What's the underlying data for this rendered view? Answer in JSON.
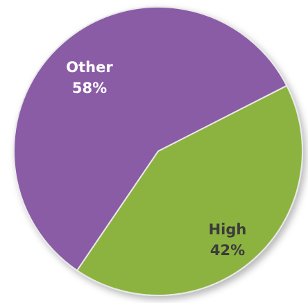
{
  "chart_data": {
    "type": "pie",
    "title": "",
    "start_angle_deg": 63,
    "slices": [
      {
        "label": "Other",
        "value": 58,
        "value_label": "58%",
        "color": "#8a5ba6",
        "text_color": "#ffffff"
      },
      {
        "label": "High",
        "value": 42,
        "value_label": "42%",
        "color": "#8cb33f",
        "text_color": "#3b3b3b"
      }
    ]
  }
}
